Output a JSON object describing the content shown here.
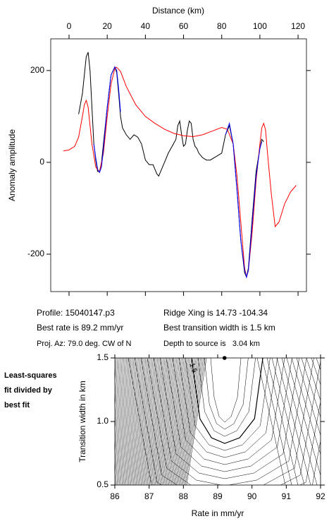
{
  "chart_data": [
    {
      "type": "line",
      "xlabel": "Distance (km)",
      "ylabel": "Anomaly amplitude",
      "xlim": [
        -9.6,
        124.4
      ],
      "ylim": [
        -281.5,
        269
      ],
      "xticks": [
        0,
        20,
        40,
        60,
        80,
        100,
        120
      ],
      "yticks": [
        -200,
        0,
        200
      ],
      "series": [
        {
          "color": "#000000",
          "x": [
            5,
            7,
            9,
            10,
            11,
            12,
            13,
            14,
            15,
            16,
            17,
            18,
            20,
            22,
            24,
            25,
            26,
            27,
            28,
            30,
            32,
            34,
            36,
            38,
            40,
            42,
            44,
            46,
            47,
            48,
            50,
            52,
            54,
            56,
            57,
            58,
            59,
            60,
            61,
            62,
            63,
            64,
            65,
            66,
            67,
            68,
            70,
            72,
            74,
            76,
            78,
            80,
            82,
            84,
            86,
            88,
            90,
            92,
            93,
            94,
            96,
            98,
            100,
            101,
            102
          ],
          "values": [
            105,
            150,
            230,
            240,
            200,
            120,
            40,
            5,
            -20,
            -20,
            0,
            40,
            120,
            190,
            208,
            195,
            150,
            100,
            75,
            60,
            50,
            60,
            55,
            40,
            5,
            -5,
            -5,
            -25,
            -30,
            -20,
            0,
            20,
            35,
            50,
            80,
            90,
            60,
            35,
            40,
            70,
            90,
            85,
            50,
            35,
            30,
            20,
            10,
            5,
            5,
            10,
            15,
            20,
            60,
            80,
            40,
            -60,
            -170,
            -240,
            -250,
            -230,
            -120,
            -20,
            30,
            50,
            45
          ]
        },
        {
          "color": "#ff0000",
          "x": [
            -3,
            0,
            3,
            5,
            7,
            8,
            9,
            10,
            11,
            12,
            14,
            16,
            18,
            20,
            22,
            24,
            25,
            27,
            30,
            35,
            40,
            45,
            50,
            55,
            60,
            65,
            70,
            75,
            80,
            83,
            86,
            88,
            90,
            92,
            93,
            94,
            96,
            98,
            100,
            101,
            102,
            103,
            104,
            106,
            108,
            110,
            113,
            116,
            119
          ],
          "values": [
            25,
            27,
            35,
            55,
            100,
            125,
            135,
            120,
            80,
            40,
            -10,
            -22,
            20,
            100,
            170,
            205,
            207,
            198,
            165,
            125,
            100,
            85,
            72,
            63,
            58,
            56,
            60,
            68,
            76,
            72,
            40,
            -30,
            -130,
            -230,
            -250,
            -235,
            -150,
            -40,
            40,
            75,
            85,
            70,
            20,
            -70,
            -140,
            -130,
            -90,
            -65,
            -50
          ]
        },
        {
          "color": "#0000ff",
          "x": [
            13,
            14,
            15,
            16,
            17,
            18,
            20,
            22,
            24,
            25,
            26,
            27,
            50,
            82,
            84,
            86,
            88,
            90,
            92,
            93,
            94,
            96,
            98,
            100,
            101
          ],
          "values": [
            40,
            10,
            -15,
            -22,
            -10,
            30,
            120,
            190,
            208,
            200,
            160,
            110,
            null,
            60,
            85,
            40,
            -60,
            -170,
            -235,
            -250,
            -235,
            -130,
            -30,
            30,
            45
          ]
        }
      ],
      "annotations": [
        "Profile: 15040147.p3",
        "Best rate is 89.2 mm/yr",
        "Proj. Az: 79.0 deg. CW of N",
        "Ridge Xing is 14.73 -104.34",
        "Best transition width is 1.5 km",
        "Depth to source is   3.04 km"
      ]
    },
    {
      "type": "contour",
      "title": "Least-squares fit divided by best fit",
      "xlabel": "Rate in mm/yr",
      "ylabel": "Transition width in km",
      "xlim": [
        86,
        92
      ],
      "ylim": [
        0.5,
        1.5
      ],
      "xticks": [
        86,
        87,
        88,
        89,
        90,
        91,
        92
      ],
      "yticks": [
        0.5,
        {
          "value": 1,
          "label": "1.0"
        },
        1.5
      ],
      "contour_label": "1.5",
      "series": [
        {
          "color": "#000000",
          "x": [
            89.2
          ],
          "values": [
            1.5
          ]
        }
      ]
    }
  ]
}
